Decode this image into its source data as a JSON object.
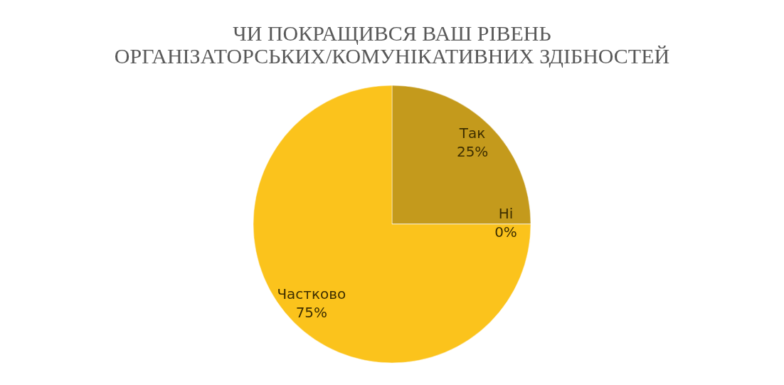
{
  "chart_data": {
    "type": "pie",
    "title": "ЧИ ПОКРАЩИВСЯ ВАШ РІВЕНЬ\nОРГАНІЗАТОРСЬКИХ/КОМУНІКАТИВНИХ ЗДІБНОСТЕЙ",
    "categories": [
      "Так",
      "Ні",
      "Частково"
    ],
    "values": [
      25,
      0,
      75
    ],
    "colors": [
      "#c49a1c",
      "#d9a400",
      "#fbc31c"
    ],
    "value_labels": [
      "25%",
      "0%",
      "75%"
    ],
    "legend": false
  }
}
